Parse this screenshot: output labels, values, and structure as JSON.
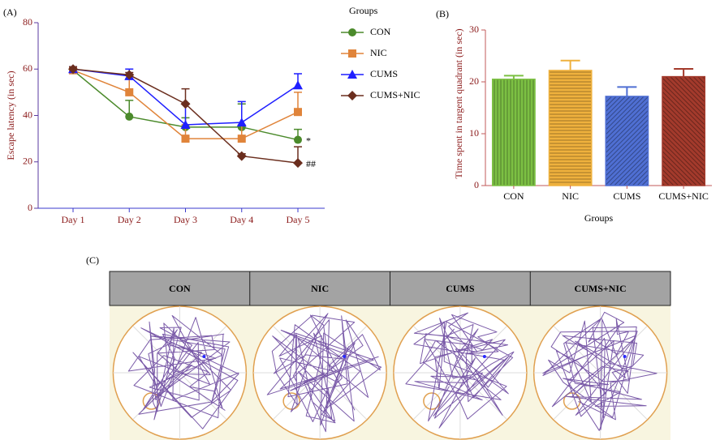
{
  "chart_data": [
    {
      "type": "line",
      "panel_label": "(A)",
      "y_label": "Escape latency (in sec)",
      "categories": [
        "Day 1",
        "Day 2",
        "Day 3",
        "Day 4",
        "Day 5"
      ],
      "ylim": [
        0,
        80
      ],
      "yticks": [
        0,
        20,
        40,
        60,
        80
      ],
      "legend_title": "Groups",
      "series": [
        {
          "name": "CON",
          "color": "#4b8a2b",
          "marker": "circle",
          "values": [
            59.5,
            39.5,
            35,
            35,
            29.5
          ],
          "errors": [
            1,
            7,
            4,
            10,
            4.5
          ]
        },
        {
          "name": "NIC",
          "color": "#e0843a",
          "marker": "square",
          "values": [
            59.5,
            50,
            30,
            30,
            41.5
          ],
          "errors": [
            1,
            6,
            6,
            6,
            8.5
          ]
        },
        {
          "name": "CUMS",
          "color": "#1f1fff",
          "marker": "triangle",
          "values": [
            60,
            57,
            36,
            37,
            53
          ],
          "errors": [
            1,
            3,
            9,
            9,
            5
          ]
        },
        {
          "name": "CUMS+NIC",
          "color": "#6b2e1e",
          "marker": "diamond",
          "values": [
            60,
            57.5,
            45,
            22.5,
            19.5
          ],
          "errors": [
            1,
            1,
            6.5,
            1,
            7
          ]
        }
      ],
      "annotations": [
        {
          "text": "*",
          "x": "Day 5",
          "y": 29.5
        },
        {
          "text": "##",
          "x": "Day 5",
          "y": 19.5
        }
      ]
    },
    {
      "type": "bar",
      "panel_label": "(B)",
      "y_label": "Time spent in targent quadrant (in sec)",
      "x_label": "Groups",
      "categories": [
        "CON",
        "NIC",
        "CUMS",
        "CUMS+NIC"
      ],
      "values": [
        20.5,
        22.2,
        17.2,
        21
      ],
      "errors": [
        0.7,
        1.9,
        1.8,
        1.5
      ],
      "colors": [
        "#7cc043",
        "#efb13d",
        "#4f6fd3",
        "#a33a2c"
      ],
      "ylim": [
        0,
        30
      ],
      "yticks": [
        0,
        10,
        20,
        30
      ]
    }
  ],
  "panel_c": {
    "panel_label": "(C)",
    "headers": [
      "CON",
      "NIC",
      "CUMS",
      "CUMS+NIC"
    ]
  }
}
